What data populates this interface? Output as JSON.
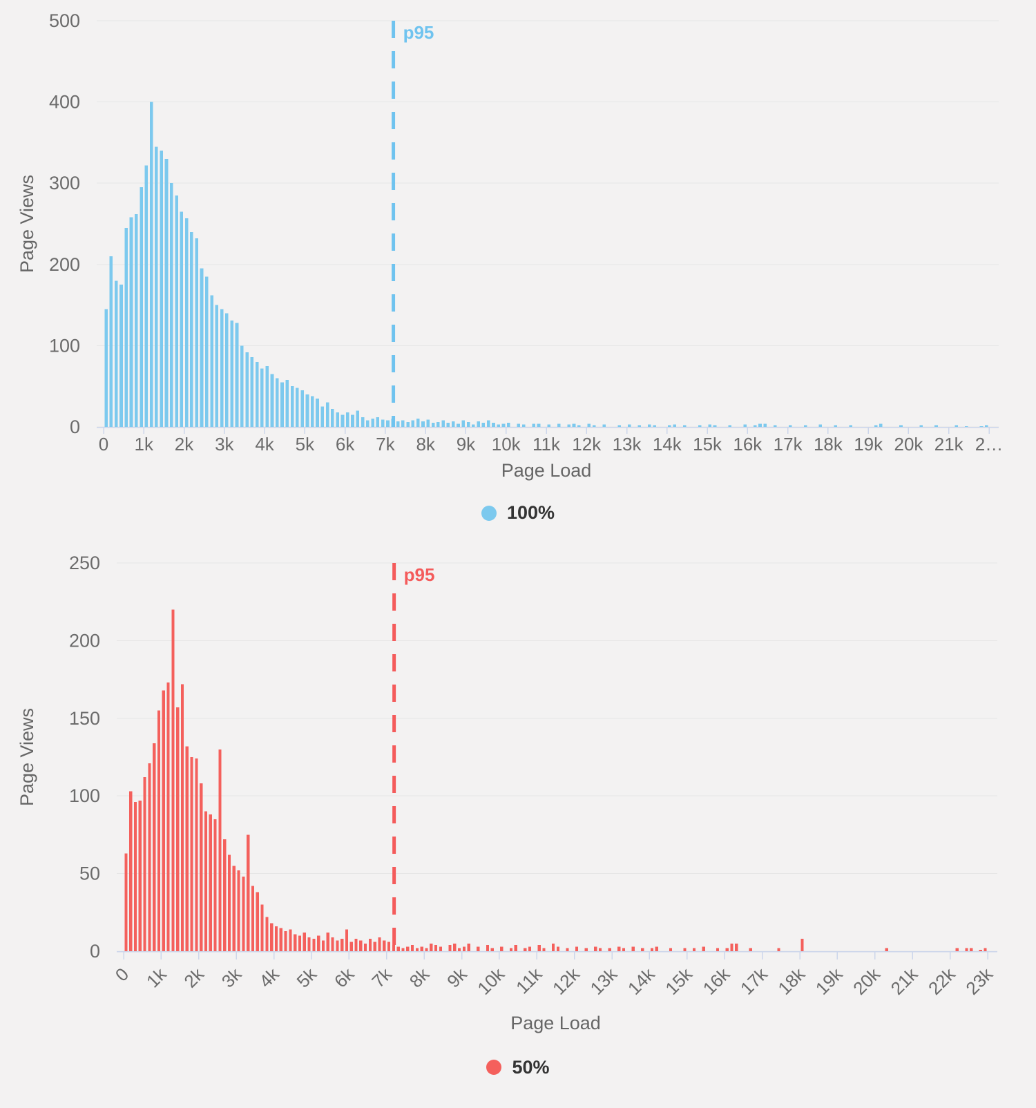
{
  "colors": {
    "background": "#f3f2f2",
    "gridline": "#e6e6e6",
    "axis_line": "#ccd6eb",
    "tick_label": "#6b6b6b",
    "axis_title": "#666666",
    "legend_text": "#333333",
    "series_blue": "#7cc9ee",
    "series_red": "#f4605c",
    "p95_blue": "#6fc3ef",
    "p95_red": "#f45b5b"
  },
  "chart_data": [
    {
      "type": "bar",
      "name": "100%",
      "color": "#7cc9ee",
      "xlabel": "Page Load",
      "ylabel": "Page Views",
      "ylim": [
        0,
        500
      ],
      "ytick_interval": 100,
      "xlim": [
        0,
        22000
      ],
      "xtick_interval": 1000,
      "xtick_labels": [
        "0",
        "1k",
        "2k",
        "3k",
        "4k",
        "5k",
        "6k",
        "7k",
        "8k",
        "9k",
        "10k",
        "11k",
        "12k",
        "13k",
        "14k",
        "15k",
        "16k",
        "17k",
        "18k",
        "19k",
        "20k",
        "21k",
        "2…"
      ],
      "x_label_rotation": 0,
      "grid": true,
      "legend_position": "bottom-center",
      "bin_width": 125,
      "p95": {
        "x": 7200,
        "label": "p95",
        "color": "#6fc3ef"
      },
      "values": [
        145,
        210,
        180,
        175,
        245,
        258,
        262,
        295,
        322,
        400,
        345,
        340,
        330,
        300,
        285,
        265,
        257,
        240,
        232,
        195,
        185,
        162,
        150,
        145,
        140,
        131,
        128,
        100,
        92,
        86,
        80,
        72,
        75,
        65,
        60,
        55,
        58,
        50,
        48,
        45,
        40,
        38,
        35,
        25,
        30,
        22,
        18,
        15,
        18,
        15,
        20,
        12,
        8,
        10,
        12,
        9,
        8,
        10,
        7,
        8,
        6,
        8,
        10,
        7,
        9,
        5,
        6,
        8,
        5,
        7,
        4,
        8,
        6,
        3,
        7,
        5,
        8,
        5,
        3,
        4,
        5,
        0,
        4,
        3,
        0,
        4,
        4,
        0,
        3,
        0,
        4,
        0,
        3,
        4,
        2,
        0,
        4,
        2,
        0,
        3,
        0,
        0,
        2,
        0,
        3,
        0,
        2,
        0,
        3,
        2,
        0,
        0,
        2,
        3,
        0,
        2,
        0,
        0,
        2,
        0,
        3,
        2,
        0,
        0,
        2,
        0,
        0,
        3,
        0,
        2,
        4,
        4,
        0,
        2,
        0,
        0,
        2,
        0,
        0,
        2,
        0,
        0,
        3,
        0,
        0,
        2,
        0,
        0,
        2,
        0,
        0,
        0,
        0,
        2,
        4,
        0,
        0,
        0,
        2,
        0,
        0,
        0,
        2,
        0,
        0,
        2,
        0,
        0,
        0,
        2,
        0,
        1,
        0,
        0,
        1,
        2
      ]
    },
    {
      "type": "bar",
      "name": "50%",
      "color": "#f4605c",
      "xlabel": "Page Load",
      "ylabel": "Page Views",
      "ylim": [
        0,
        250
      ],
      "ytick_interval": 50,
      "xlim": [
        0,
        23000
      ],
      "xtick_interval": 1000,
      "xtick_labels": [
        "0",
        "1k",
        "2k",
        "3k",
        "4k",
        "5k",
        "6k",
        "7k",
        "8k",
        "9k",
        "10k",
        "11k",
        "12k",
        "13k",
        "14k",
        "15k",
        "16k",
        "17k",
        "18k",
        "19k",
        "20k",
        "21k",
        "22k",
        "23k"
      ],
      "x_label_rotation": -45,
      "grid": true,
      "legend_position": "bottom-center",
      "bin_width": 125,
      "p95": {
        "x": 7200,
        "label": "p95",
        "color": "#f45b5b"
      },
      "values": [
        63,
        103,
        96,
        97,
        112,
        121,
        134,
        155,
        168,
        173,
        220,
        157,
        172,
        132,
        125,
        124,
        108,
        90,
        88,
        85,
        130,
        72,
        62,
        55,
        52,
        48,
        75,
        42,
        38,
        30,
        22,
        18,
        16,
        15,
        13,
        14,
        11,
        10,
        12,
        9,
        8,
        10,
        7,
        12,
        9,
        7,
        8,
        14,
        6,
        8,
        7,
        5,
        8,
        6,
        9,
        7,
        6,
        4,
        3,
        2,
        3,
        4,
        2,
        3,
        2,
        5,
        4,
        3,
        0,
        4,
        5,
        2,
        3,
        5,
        0,
        3,
        0,
        4,
        2,
        0,
        3,
        0,
        2,
        4,
        0,
        2,
        3,
        0,
        4,
        2,
        0,
        5,
        3,
        0,
        2,
        0,
        3,
        0,
        2,
        0,
        3,
        2,
        0,
        2,
        0,
        3,
        2,
        0,
        3,
        0,
        2,
        0,
        2,
        3,
        0,
        0,
        2,
        0,
        0,
        2,
        0,
        2,
        0,
        3,
        0,
        0,
        2,
        0,
        2,
        5,
        5,
        0,
        0,
        2,
        0,
        0,
        0,
        0,
        0,
        2,
        0,
        0,
        0,
        0,
        8,
        0,
        0,
        0,
        0,
        0,
        0,
        0,
        0,
        0,
        0,
        0,
        0,
        0,
        0,
        0,
        0,
        0,
        2,
        0,
        0,
        0,
        0,
        0,
        0,
        0,
        0,
        0,
        0,
        0,
        0,
        0,
        0,
        2,
        0,
        2,
        2,
        0,
        1,
        2
      ]
    }
  ]
}
